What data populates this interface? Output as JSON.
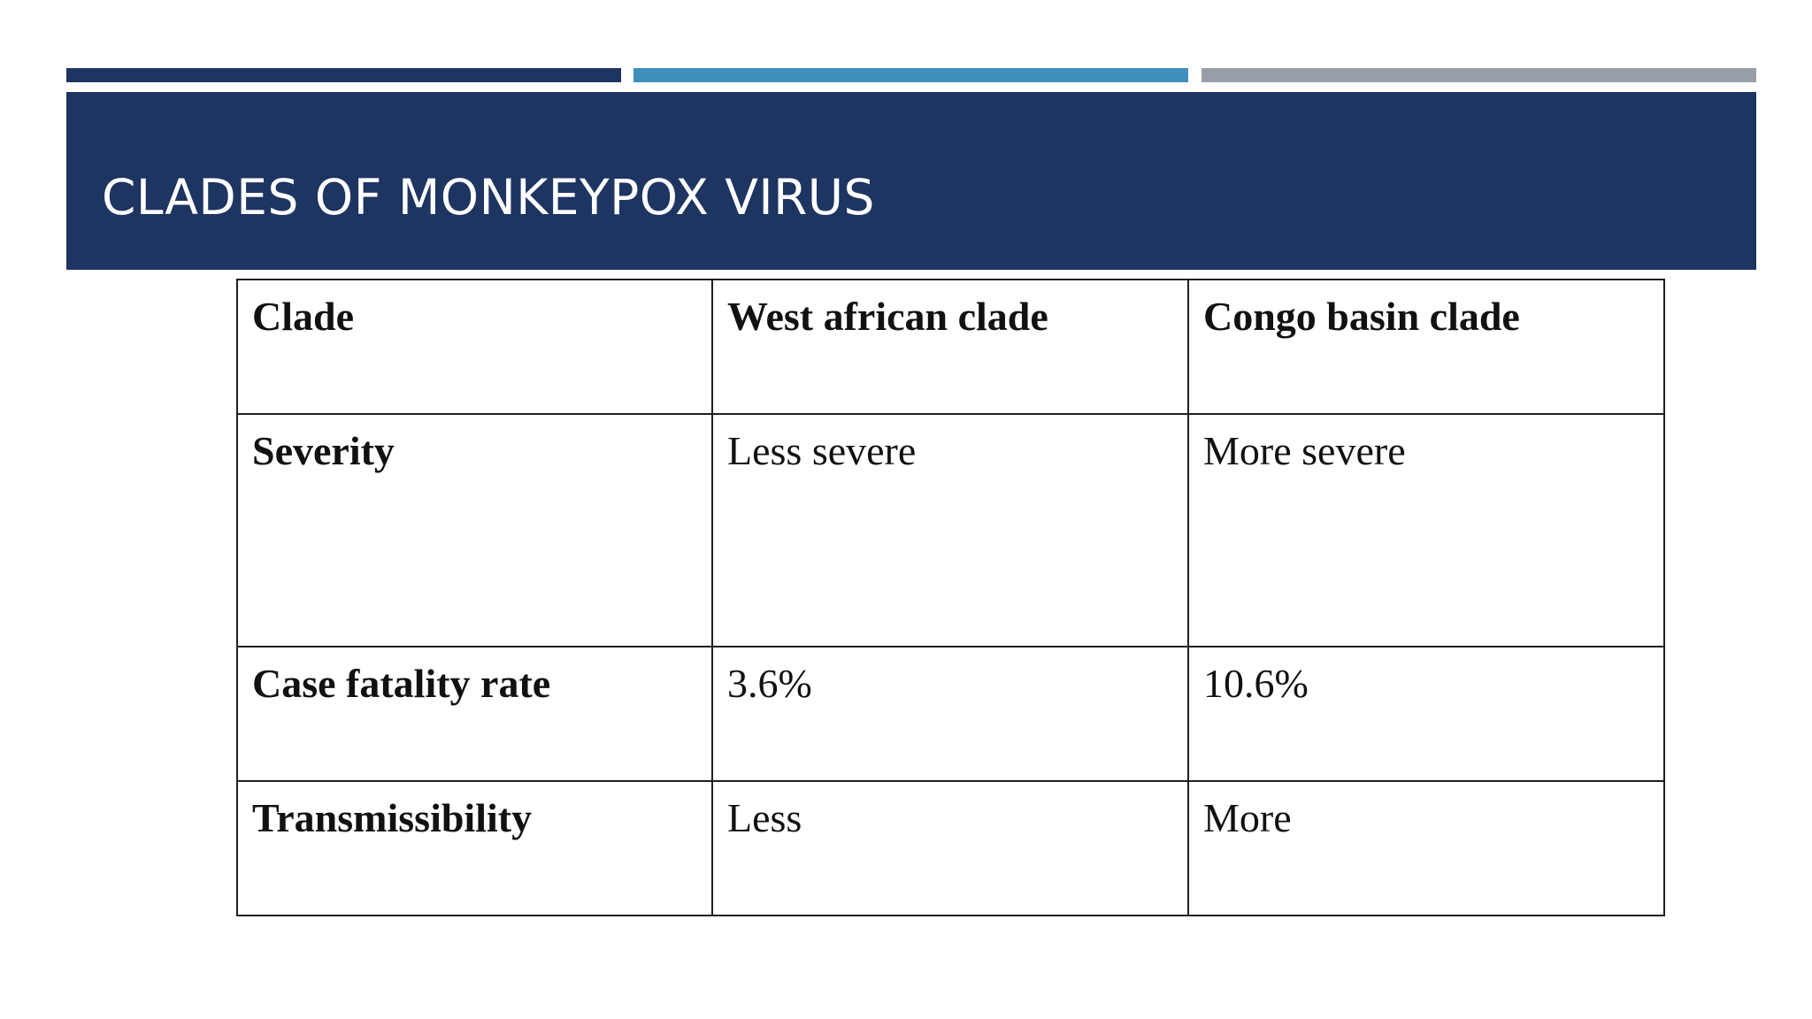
{
  "colors": {
    "accent_dark_navy": "#1e3461",
    "accent_blue": "#3f8fbd",
    "accent_gray": "#979ea8",
    "title_band": "#1e3461",
    "title_text": "#ffffff"
  },
  "slide": {
    "title": "CLADES OF MONKEYPOX VIRUS"
  },
  "table": {
    "header": {
      "row_label": "Clade",
      "col1": "West african clade",
      "col2": "Congo basin clade"
    },
    "rows": [
      {
        "label": "Severity",
        "west_african": "Less severe",
        "congo_basin": "More severe"
      },
      {
        "label": "Case fatality rate",
        "west_african": "3.6%",
        "congo_basin": "10.6%"
      },
      {
        "label": "Transmissibility",
        "west_african": "Less",
        "congo_basin": "More"
      }
    ]
  }
}
